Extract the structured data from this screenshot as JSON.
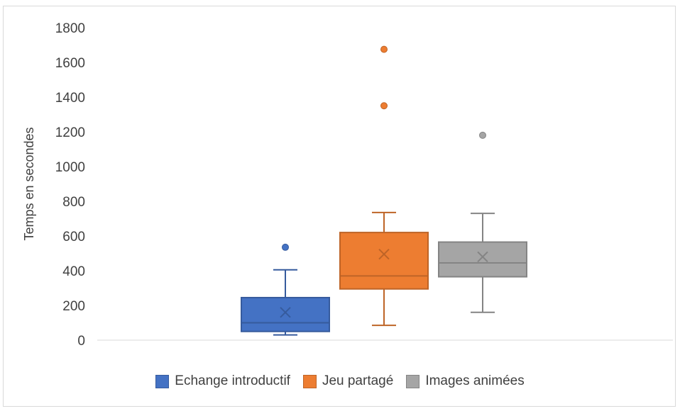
{
  "chart_data": {
    "type": "box",
    "title": "",
    "xlabel": "",
    "ylabel": "Temps en secondes",
    "ylim": [
      0,
      1800
    ],
    "yticks": [
      0,
      200,
      400,
      600,
      800,
      1000,
      1200,
      1400,
      1600,
      1800
    ],
    "grid": false,
    "legend_position": "bottom",
    "series": [
      {
        "name": "Echange introductif",
        "color": "#4472C4",
        "min": 30,
        "q1": 50,
        "median": 100,
        "q3": 245,
        "max": 405,
        "mean": 160,
        "outliers": [
          535
        ]
      },
      {
        "name": "Jeu partagé",
        "color": "#ED7D31",
        "min": 85,
        "q1": 295,
        "median": 370,
        "q3": 620,
        "max": 735,
        "mean": 495,
        "outliers": [
          1350,
          1675
        ]
      },
      {
        "name": "Images animées",
        "color": "#A5A5A5",
        "min": 160,
        "q1": 365,
        "median": 445,
        "q3": 565,
        "max": 730,
        "mean": 480,
        "outliers": [
          1180
        ]
      }
    ]
  }
}
